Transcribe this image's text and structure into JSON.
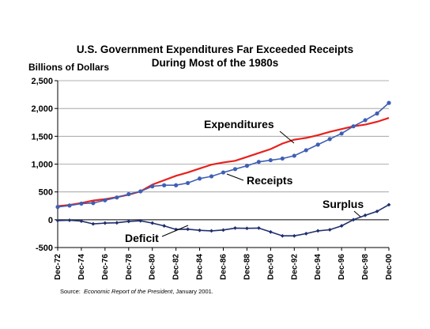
{
  "chart_data": {
    "type": "line",
    "title_lines": [
      "U.S. Government Expenditures Far Exceeded Receipts",
      "During Most of the 1980s"
    ],
    "ylabel": "Billions of Dollars",
    "yticks": [
      -500,
      0,
      500,
      1000,
      1500,
      2000,
      2500
    ],
    "ytick_labels": [
      "-500",
      "0",
      "500",
      "1,000",
      "1,500",
      "2,000",
      "2,500"
    ],
    "ylim": [
      -500,
      2500
    ],
    "xlim": [
      1972.917,
      2000.917
    ],
    "xtick_labels": [
      "Dec-72",
      "Dec-74",
      "Dec-76",
      "Dec-78",
      "Dec-80",
      "Dec-82",
      "Dec-84",
      "Dec-86",
      "Dec-88",
      "Dec-90",
      "Dec-92",
      "Dec-94",
      "Dec-96",
      "Dec-98",
      "Dec-00"
    ],
    "xtick_values": [
      1972.917,
      1974.917,
      1976.917,
      1978.917,
      1980.917,
      1982.917,
      1984.917,
      1986.917,
      1988.917,
      1990.917,
      1992.917,
      1994.917,
      1996.917,
      1998.917,
      2000.917
    ],
    "grid": "horizontal",
    "series": [
      {
        "name": "Expenditures",
        "color": "#e8201c",
        "marker": "none",
        "points": [
          [
            1972.917,
            245
          ],
          [
            1973.917,
            265
          ],
          [
            1974.917,
            300
          ],
          [
            1975.917,
            345
          ],
          [
            1976.917,
            370
          ],
          [
            1977.917,
            405
          ],
          [
            1978.917,
            450
          ],
          [
            1979.917,
            510
          ],
          [
            1980.917,
            630
          ],
          [
            1981.917,
            710
          ],
          [
            1982.917,
            790
          ],
          [
            1983.917,
            850
          ],
          [
            1984.917,
            920
          ],
          [
            1985.917,
            990
          ],
          [
            1986.917,
            1030
          ],
          [
            1987.917,
            1060
          ],
          [
            1988.917,
            1130
          ],
          [
            1989.917,
            1200
          ],
          [
            1990.917,
            1270
          ],
          [
            1991.917,
            1370
          ],
          [
            1992.917,
            1440
          ],
          [
            1993.917,
            1470
          ],
          [
            1994.917,
            1520
          ],
          [
            1995.917,
            1580
          ],
          [
            1996.917,
            1630
          ],
          [
            1997.917,
            1680
          ],
          [
            1998.917,
            1710
          ],
          [
            1999.917,
            1760
          ],
          [
            2000.917,
            1830
          ]
        ]
      },
      {
        "name": "Receipts",
        "color": "#3f5fb4",
        "marker": "circle",
        "points": [
          [
            1972.917,
            230
          ],
          [
            1973.917,
            255
          ],
          [
            1974.917,
            290
          ],
          [
            1975.917,
            300
          ],
          [
            1976.917,
            350
          ],
          [
            1977.917,
            400
          ],
          [
            1978.917,
            460
          ],
          [
            1979.917,
            510
          ],
          [
            1980.917,
            600
          ],
          [
            1981.917,
            620
          ],
          [
            1982.917,
            620
          ],
          [
            1983.917,
            660
          ],
          [
            1984.917,
            740
          ],
          [
            1985.917,
            780
          ],
          [
            1986.917,
            850
          ],
          [
            1987.917,
            910
          ],
          [
            1988.917,
            970
          ],
          [
            1989.917,
            1040
          ],
          [
            1990.917,
            1070
          ],
          [
            1991.917,
            1100
          ],
          [
            1992.917,
            1150
          ],
          [
            1993.917,
            1250
          ],
          [
            1994.917,
            1350
          ],
          [
            1995.917,
            1450
          ],
          [
            1996.917,
            1550
          ],
          [
            1997.917,
            1680
          ],
          [
            1998.917,
            1790
          ],
          [
            1999.917,
            1910
          ],
          [
            2000.917,
            2100
          ]
        ]
      },
      {
        "name": "Deficit / Surplus",
        "color": "#1f2f6e",
        "marker": "diamond",
        "points": [
          [
            1972.917,
            -15
          ],
          [
            1973.917,
            -10
          ],
          [
            1974.917,
            -25
          ],
          [
            1975.917,
            -75
          ],
          [
            1976.917,
            -60
          ],
          [
            1977.917,
            -55
          ],
          [
            1978.917,
            -30
          ],
          [
            1979.917,
            -20
          ],
          [
            1980.917,
            -60
          ],
          [
            1981.917,
            -110
          ],
          [
            1982.917,
            -175
          ],
          [
            1983.917,
            -170
          ],
          [
            1984.917,
            -190
          ],
          [
            1985.917,
            -200
          ],
          [
            1986.917,
            -185
          ],
          [
            1987.917,
            -150
          ],
          [
            1988.917,
            -155
          ],
          [
            1989.917,
            -150
          ],
          [
            1990.917,
            -220
          ],
          [
            1991.917,
            -290
          ],
          [
            1992.917,
            -290
          ],
          [
            1993.917,
            -250
          ],
          [
            1994.917,
            -200
          ],
          [
            1995.917,
            -180
          ],
          [
            1996.917,
            -110
          ],
          [
            1997.917,
            0
          ],
          [
            1998.917,
            80
          ],
          [
            1999.917,
            150
          ],
          [
            2000.917,
            270
          ]
        ]
      }
    ],
    "annotations": [
      "Expenditures",
      "Receipts",
      "Surplus",
      "Deficit"
    ],
    "source_prefix": "Source:",
    "source_title": "Economic Report of the President",
    "source_suffix": ", January 2001."
  }
}
